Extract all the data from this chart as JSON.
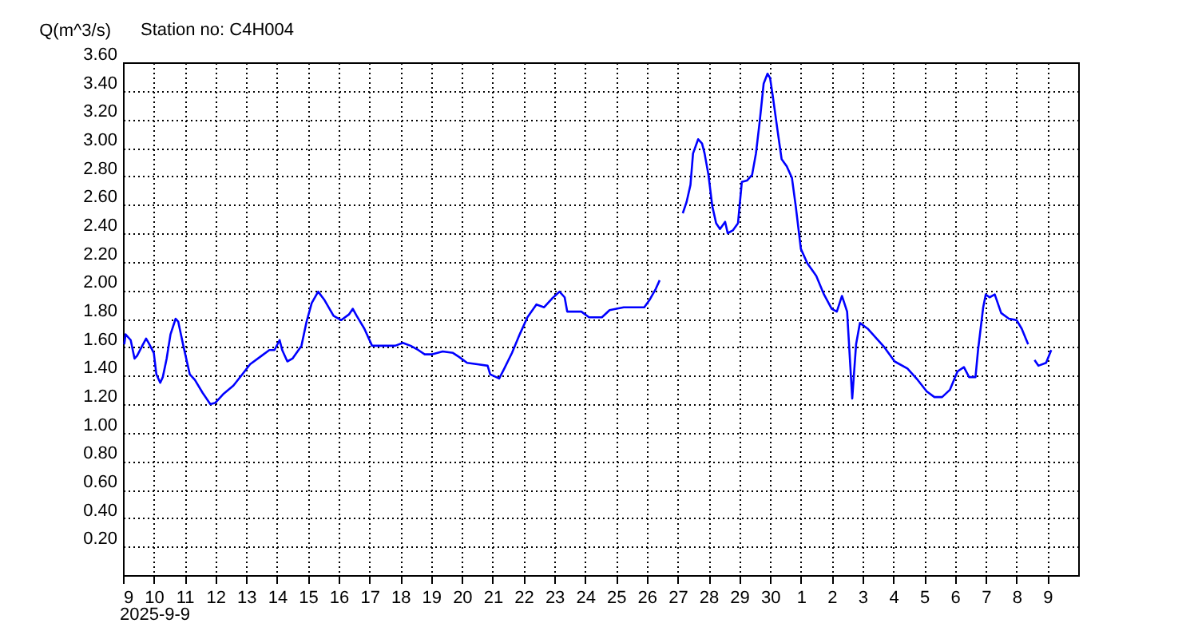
{
  "chart_data": {
    "type": "line",
    "title": "Station no: C4H004",
    "ylabel": "Q(m^3/s)",
    "annotations": [
      "2025-9-9"
    ],
    "xlim": [
      "2025-09-09",
      "2025-10-10"
    ],
    "xticks": [
      {
        "value": "2025-09-09",
        "label": "9"
      },
      {
        "value": "2025-09-10",
        "label": "10"
      },
      {
        "value": "2025-09-11",
        "label": "11"
      },
      {
        "value": "2025-09-12",
        "label": "12"
      },
      {
        "value": "2025-09-13",
        "label": "13"
      },
      {
        "value": "2025-09-14",
        "label": "14"
      },
      {
        "value": "2025-09-15",
        "label": "15"
      },
      {
        "value": "2025-09-16",
        "label": "16"
      },
      {
        "value": "2025-09-17",
        "label": "17"
      },
      {
        "value": "2025-09-18",
        "label": "18"
      },
      {
        "value": "2025-09-19",
        "label": "19"
      },
      {
        "value": "2025-09-20",
        "label": "20"
      },
      {
        "value": "2025-09-21",
        "label": "21"
      },
      {
        "value": "2025-09-22",
        "label": "22"
      },
      {
        "value": "2025-09-23",
        "label": "23"
      },
      {
        "value": "2025-09-24",
        "label": "24"
      },
      {
        "value": "2025-09-25",
        "label": "25"
      },
      {
        "value": "2025-09-26",
        "label": "26"
      },
      {
        "value": "2025-09-27",
        "label": "27"
      },
      {
        "value": "2025-09-28",
        "label": "28"
      },
      {
        "value": "2025-09-29",
        "label": "29"
      },
      {
        "value": "2025-09-30",
        "label": "30"
      },
      {
        "value": "2025-10-01",
        "label": "1"
      },
      {
        "value": "2025-10-02",
        "label": "2"
      },
      {
        "value": "2025-10-03",
        "label": "3"
      },
      {
        "value": "2025-10-04",
        "label": "4"
      },
      {
        "value": "2025-10-05",
        "label": "5"
      },
      {
        "value": "2025-10-06",
        "label": "6"
      },
      {
        "value": "2025-10-07",
        "label": "7"
      },
      {
        "value": "2025-10-08",
        "label": "8"
      },
      {
        "value": "2025-10-09",
        "label": "9"
      }
    ],
    "ylim": [
      0,
      3.6
    ],
    "yticks": [
      {
        "value": 0.2,
        "label": "0.20"
      },
      {
        "value": 0.4,
        "label": "0.40"
      },
      {
        "value": 0.6,
        "label": "0.60"
      },
      {
        "value": 0.8,
        "label": "0.80"
      },
      {
        "value": 1.0,
        "label": "1.00"
      },
      {
        "value": 1.2,
        "label": "1.20"
      },
      {
        "value": 1.4,
        "label": "1.40"
      },
      {
        "value": 1.6,
        "label": "1.60"
      },
      {
        "value": 1.8,
        "label": "1.80"
      },
      {
        "value": 2.0,
        "label": "2.00"
      },
      {
        "value": 2.2,
        "label": "2.20"
      },
      {
        "value": 2.4,
        "label": "2.40"
      },
      {
        "value": 2.6,
        "label": "2.60"
      },
      {
        "value": 2.8,
        "label": "2.80"
      },
      {
        "value": 3.0,
        "label": "3.00"
      },
      {
        "value": 3.2,
        "label": "3.20"
      },
      {
        "value": 3.4,
        "label": "3.40"
      },
      {
        "value": 3.6,
        "label": "3.60"
      }
    ],
    "grid": true,
    "x": [
      "2025-09-09T01:00",
      "2025-09-09T02:00",
      "2025-09-09T06:00",
      "2025-09-09T09:00",
      "2025-09-09T11:00",
      "2025-09-09T15:00",
      "2025-09-09T18:00",
      "2025-09-09T20:00",
      "2025-09-10T00:00",
      "2025-09-10T02:00",
      "2025-09-10T05:00",
      "2025-09-10T07:00",
      "2025-09-10T10:00",
      "2025-09-10T13:00",
      "2025-09-10T17:00",
      "2025-09-10T19:00",
      "2025-09-10T23:00",
      "2025-09-11T04:00",
      "2025-09-11T08:00",
      "2025-09-11T14:00",
      "2025-09-11T20:00",
      "2025-09-12T00:00",
      "2025-09-12T06:00",
      "2025-09-12T14:00",
      "2025-09-12T21:00",
      "2025-09-13T03:00",
      "2025-09-13T12:00",
      "2025-09-13T18:00",
      "2025-09-13T22:00",
      "2025-09-14T02:00",
      "2025-09-14T04:00",
      "2025-09-14T08:00",
      "2025-09-14T12:00",
      "2025-09-14T19:00",
      "2025-09-14T23:00",
      "2025-09-15T03:00",
      "2025-09-15T08:00",
      "2025-09-15T13:00",
      "2025-09-15T20:00",
      "2025-09-16T02:00",
      "2025-09-16T08:00",
      "2025-09-16T11:00",
      "2025-09-16T14:00",
      "2025-09-16T20:00",
      "2025-09-17T02:00",
      "2025-09-17T07:00",
      "2025-09-17T20:00",
      "2025-09-18T02:00",
      "2025-09-18T08:00",
      "2025-09-18T14:00",
      "2025-09-18T19:00",
      "2025-09-19T01:00",
      "2025-09-19T09:00",
      "2025-09-19T17:00",
      "2025-09-19T22:00",
      "2025-09-20T04:00",
      "2025-09-20T12:00",
      "2025-09-20T20:00",
      "2025-09-20T22:00",
      "2025-09-21T05:00",
      "2025-09-21T09:00",
      "2025-09-21T15:00",
      "2025-09-21T21:00",
      "2025-09-22T03:00",
      "2025-09-22T10:00",
      "2025-09-22T16:00",
      "2025-09-22T22:00",
      "2025-09-23T04:00",
      "2025-09-23T08:00",
      "2025-09-23T10:00",
      "2025-09-23T21:00",
      "2025-09-24T03:00",
      "2025-09-24T13:00",
      "2025-09-24T19:00",
      "2025-09-25T06:00",
      "2025-09-25T22:00",
      "2025-09-26T02:00",
      "2025-09-26T07:00",
      "2025-09-26T10:00",
      "2025-09-26T20:00",
      "2025-09-27T04:00",
      "2025-09-27T07:00",
      "2025-09-27T10:00",
      "2025-09-27T12:00",
      "2025-09-27T16:00",
      "2025-09-27T19:00",
      "2025-09-27T21:00",
      "2025-09-28T00:00",
      "2025-09-28T03:00",
      "2025-09-28T06:00",
      "2025-09-28T09:00",
      "2025-09-28T13:00",
      "2025-09-28T15:00",
      "2025-09-28T19:00",
      "2025-09-28T23:00",
      "2025-09-29T02:00",
      "2025-09-29T06:00",
      "2025-09-29T10:00",
      "2025-09-29T13:00",
      "2025-09-29T16:00",
      "2025-09-29T19:00",
      "2025-09-29T22:00",
      "2025-09-30T00:00",
      "2025-09-30T02:00",
      "2025-09-30T06:00",
      "2025-09-30T09:00",
      "2025-09-30T13:00",
      "2025-09-30T17:00",
      "2025-09-30T20:00",
      "2025-10-01T00:00",
      "2025-10-01T05:00",
      "2025-10-01T12:00",
      "2025-10-01T18:00",
      "2025-10-02T00:00",
      "2025-10-02T04:00",
      "2025-10-02T08:00",
      "2025-10-02T12:00",
      "2025-10-02T16:00",
      "2025-10-02T19:00",
      "2025-10-02T22:00",
      "2025-10-03T04:00",
      "2025-10-03T10:00",
      "2025-10-03T17:00",
      "2025-10-04T01:00",
      "2025-10-04T11:00",
      "2025-10-04T19:00",
      "2025-10-05T02:00",
      "2025-10-05T08:00",
      "2025-10-05T14:00",
      "2025-10-05T20:00",
      "2025-10-06T02:00",
      "2025-10-06T07:00",
      "2025-10-06T11:00",
      "2025-10-06T16:00",
      "2025-10-06T18:00",
      "2025-10-06T22:00",
      "2025-10-07T00:00",
      "2025-10-07T03:00",
      "2025-10-07T07:00",
      "2025-10-07T12:00",
      "2025-10-07T18:00",
      "2025-10-08T00:00",
      "2025-10-08T04:00",
      "2025-10-08T09:00",
      "2025-10-08T12:00",
      "2025-10-08T14:00",
      "2025-10-08T17:00",
      "2025-10-08T23:00",
      "2025-10-09T03:00"
    ],
    "series": [
      {
        "color": "#0000ff",
        "values": [
          1.62,
          1.69,
          1.65,
          1.52,
          1.54,
          1.61,
          1.66,
          1.63,
          1.56,
          1.41,
          1.35,
          1.39,
          1.52,
          1.69,
          1.8,
          1.78,
          1.61,
          1.41,
          1.37,
          1.28,
          1.2,
          1.21,
          1.27,
          1.33,
          1.41,
          1.48,
          1.54,
          1.58,
          1.58,
          1.65,
          1.58,
          1.5,
          1.52,
          1.61,
          1.78,
          1.91,
          1.99,
          1.93,
          1.82,
          1.79,
          1.83,
          1.87,
          1.82,
          1.73,
          1.61,
          1.61,
          1.61,
          1.63,
          1.61,
          1.58,
          1.55,
          1.55,
          1.57,
          1.56,
          1.53,
          1.49,
          1.48,
          1.47,
          1.41,
          1.38,
          1.45,
          1.56,
          1.69,
          1.81,
          1.9,
          1.88,
          1.94,
          1.99,
          1.95,
          1.85,
          1.85,
          1.81,
          1.81,
          1.86,
          1.88,
          1.88,
          1.93,
          2.01,
          2.07,
          null,
          2.54,
          2.62,
          2.74,
          2.96,
          3.06,
          3.03,
          2.96,
          2.81,
          2.59,
          2.47,
          2.43,
          2.48,
          2.4,
          2.42,
          2.47,
          2.76,
          2.77,
          2.81,
          2.96,
          3.19,
          3.45,
          3.52,
          3.49,
          3.37,
          3.11,
          2.92,
          2.87,
          2.79,
          2.59,
          2.29,
          2.19,
          2.1,
          1.97,
          1.87,
          1.85,
          1.96,
          1.85,
          1.24,
          1.62,
          1.77,
          1.73,
          1.67,
          1.6,
          1.5,
          1.45,
          1.37,
          1.29,
          1.25,
          1.25,
          1.3,
          1.43,
          1.46,
          1.39,
          1.39,
          1.58,
          1.88,
          1.97,
          1.95,
          1.97,
          1.84,
          1.8,
          1.79,
          1.73,
          1.62,
          null,
          1.51,
          1.47,
          1.49,
          1.58
        ]
      }
    ]
  }
}
